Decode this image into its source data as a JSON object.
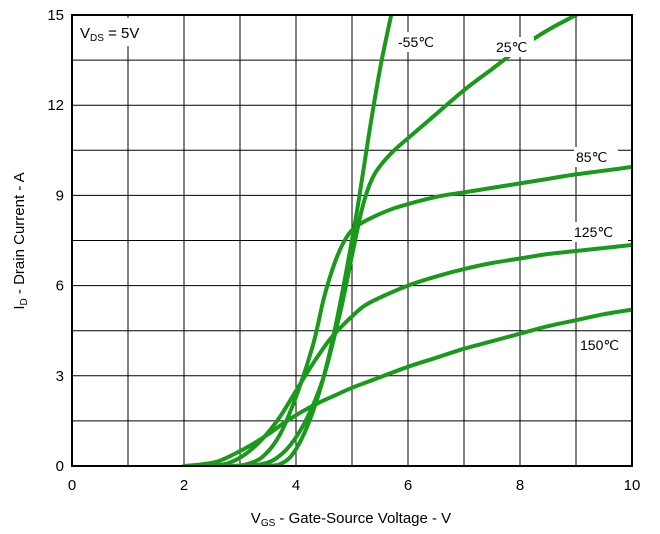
{
  "chart_data": {
    "type": "line",
    "xlabel": {
      "main": "V",
      "sub": "GS",
      "rest": " - Gate-Source Voltage - V"
    },
    "ylabel": {
      "main": "I",
      "sub": "D",
      "rest": " - Drain Current - A"
    },
    "annotation": {
      "main": "V",
      "sub": "DS",
      "rest": " = 5V"
    },
    "xlim": [
      0,
      10
    ],
    "ylim": [
      0,
      15
    ],
    "x_ticks": [
      "0",
      "2",
      "4",
      "6",
      "8",
      "10"
    ],
    "y_ticks": [
      "0",
      "3",
      "6",
      "9",
      "12",
      "15"
    ],
    "grid": true,
    "line_color": "#1a9a1a",
    "series": [
      {
        "label": "-55℃",
        "x": [
          3.2,
          3.5,
          3.7,
          3.9,
          4.1,
          4.3,
          4.5,
          4.7,
          4.9,
          5.1,
          5.3,
          5.5,
          5.7
        ],
        "y": [
          0.0,
          0.01,
          0.05,
          0.3,
          0.9,
          1.8,
          3.0,
          4.6,
          6.5,
          8.6,
          11.0,
          13.2,
          15.0
        ]
      },
      {
        "label": "25℃",
        "x": [
          3.0,
          3.3,
          3.6,
          3.9,
          4.2,
          4.5,
          4.8,
          5.0,
          5.2,
          5.4,
          5.7,
          6.0,
          6.5,
          7.0,
          7.5,
          8.0,
          8.5,
          9.0,
          9.5,
          10.0
        ],
        "y": [
          0.0,
          0.03,
          0.2,
          0.7,
          1.6,
          3.0,
          5.2,
          7.0,
          8.7,
          9.7,
          10.4,
          10.9,
          11.7,
          12.5,
          13.2,
          13.9,
          14.5,
          15.0,
          15.5,
          16.0
        ]
      },
      {
        "label": "85℃",
        "x": [
          2.8,
          3.1,
          3.4,
          3.7,
          4.0,
          4.3,
          4.5,
          4.7,
          4.9,
          5.1,
          5.4,
          5.8,
          6.5,
          7.0,
          7.5,
          8.0,
          8.5,
          9.0,
          9.5,
          10.0
        ],
        "y": [
          0.0,
          0.05,
          0.3,
          1.0,
          2.3,
          4.0,
          5.6,
          6.8,
          7.6,
          8.0,
          8.3,
          8.6,
          8.95,
          9.1,
          9.25,
          9.4,
          9.55,
          9.7,
          9.82,
          9.95
        ]
      },
      {
        "label": "125℃",
        "x": [
          2.5,
          2.8,
          3.1,
          3.4,
          3.7,
          4.0,
          4.3,
          4.6,
          4.9,
          5.2,
          5.5,
          6.0,
          6.5,
          7.0,
          7.5,
          8.0,
          8.5,
          9.0,
          9.5,
          10.0
        ],
        "y": [
          0.0,
          0.1,
          0.4,
          0.9,
          1.6,
          2.5,
          3.4,
          4.2,
          4.8,
          5.3,
          5.6,
          6.0,
          6.3,
          6.55,
          6.75,
          6.9,
          7.05,
          7.15,
          7.25,
          7.35
        ]
      },
      {
        "label": "150℃",
        "x": [
          2.0,
          2.3,
          2.6,
          2.9,
          3.2,
          3.5,
          3.8,
          4.1,
          4.4,
          4.7,
          5.0,
          5.5,
          6.0,
          6.5,
          7.0,
          7.5,
          8.0,
          8.5,
          9.0,
          9.5,
          10.0
        ],
        "y": [
          0.0,
          0.05,
          0.15,
          0.4,
          0.7,
          1.05,
          1.45,
          1.8,
          2.1,
          2.35,
          2.6,
          2.95,
          3.3,
          3.6,
          3.9,
          4.15,
          4.4,
          4.65,
          4.85,
          5.05,
          5.2
        ]
      }
    ]
  }
}
